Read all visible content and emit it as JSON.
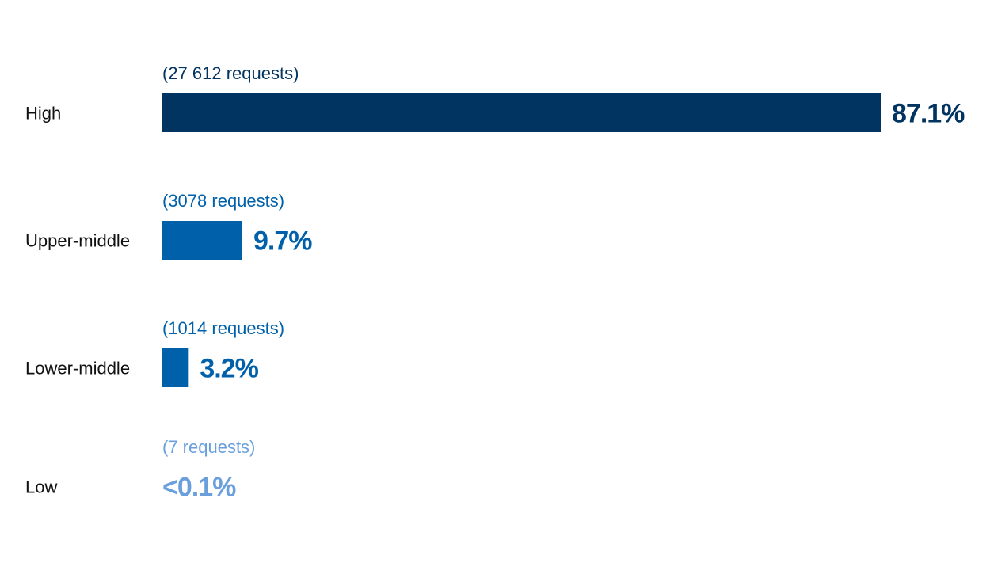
{
  "chart_data": {
    "type": "bar",
    "orientation": "horizontal",
    "title": "",
    "xlabel": "",
    "ylabel": "",
    "categories": [
      "High",
      "Upper-middle",
      "Lower-middle",
      "Low"
    ],
    "values": [
      87.1,
      9.7,
      3.2,
      0.05
    ],
    "value_labels": [
      "87.1%",
      "9.7%",
      "3.2%",
      "<0.1%"
    ],
    "request_labels": [
      "(27 612 requests)",
      "(3078 requests)",
      "(1014 requests)",
      "(7 requests)"
    ],
    "colors": [
      "#023461",
      "#0061aa",
      "#0061aa",
      "#6a9fde"
    ],
    "xlim": [
      0,
      87.1
    ],
    "grid": false,
    "legend": "none"
  }
}
